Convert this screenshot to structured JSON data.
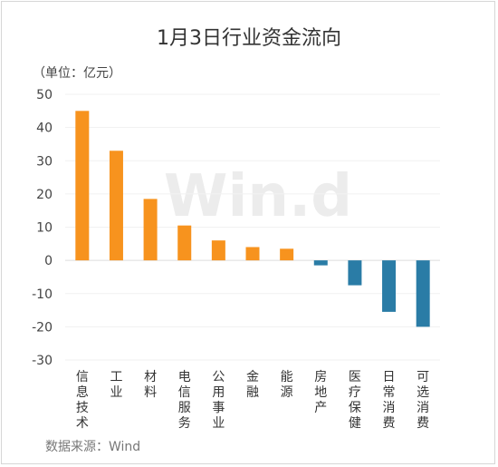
{
  "title": "1月3日行业资金流向",
  "unit_label": "（单位：亿元）",
  "source": "数据来源：Wind",
  "watermark": "Win.d",
  "colors": {
    "positive": "#f7931e",
    "negative": "#2a7ca6"
  },
  "chart_data": {
    "type": "bar",
    "title": "1月3日行业资金流向",
    "ylabel": "单位：亿元",
    "xlabel": "",
    "ylim": [
      -30,
      50
    ],
    "yticks": [
      50,
      40,
      30,
      20,
      10,
      0,
      -10,
      -20,
      -30
    ],
    "categories": [
      "信息技术",
      "工业",
      "材料",
      "电信服务",
      "公用事业",
      "金融",
      "能源",
      "房地产",
      "医疗保健",
      "日常消费",
      "可选消费"
    ],
    "values": [
      45,
      33,
      18.5,
      10.5,
      6,
      4,
      3.5,
      -1.5,
      -7.5,
      -15.5,
      -20
    ],
    "grid": true,
    "legend": "none"
  }
}
